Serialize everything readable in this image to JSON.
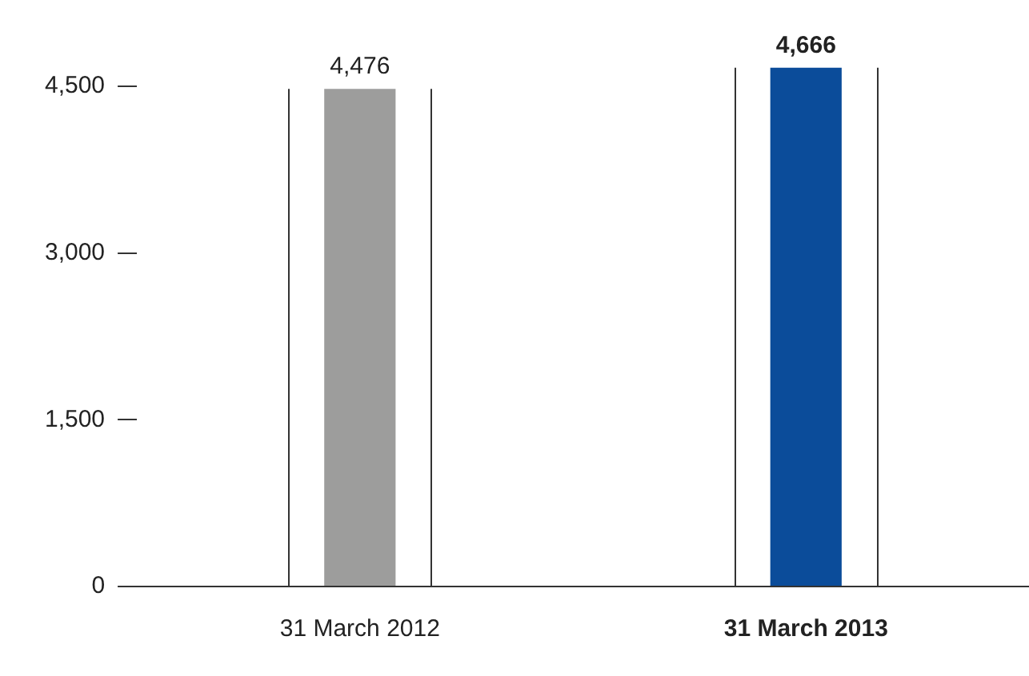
{
  "chart_data": {
    "type": "bar",
    "categories": [
      "31 March 2012",
      "31 March 2013"
    ],
    "values": [
      4476,
      4666
    ],
    "colors": [
      "#9d9d9c",
      "#0b4c9a"
    ],
    "ylim": [
      0,
      4700
    ],
    "yticks": [
      {
        "value": 0,
        "label": "0"
      },
      {
        "value": 1500,
        "label": "1,500"
      },
      {
        "value": 3000,
        "label": "3,000"
      },
      {
        "value": 4500,
        "label": "4,500"
      }
    ],
    "grid": false,
    "legend": false,
    "value_labels": [
      "4,476",
      "4,666"
    ]
  }
}
